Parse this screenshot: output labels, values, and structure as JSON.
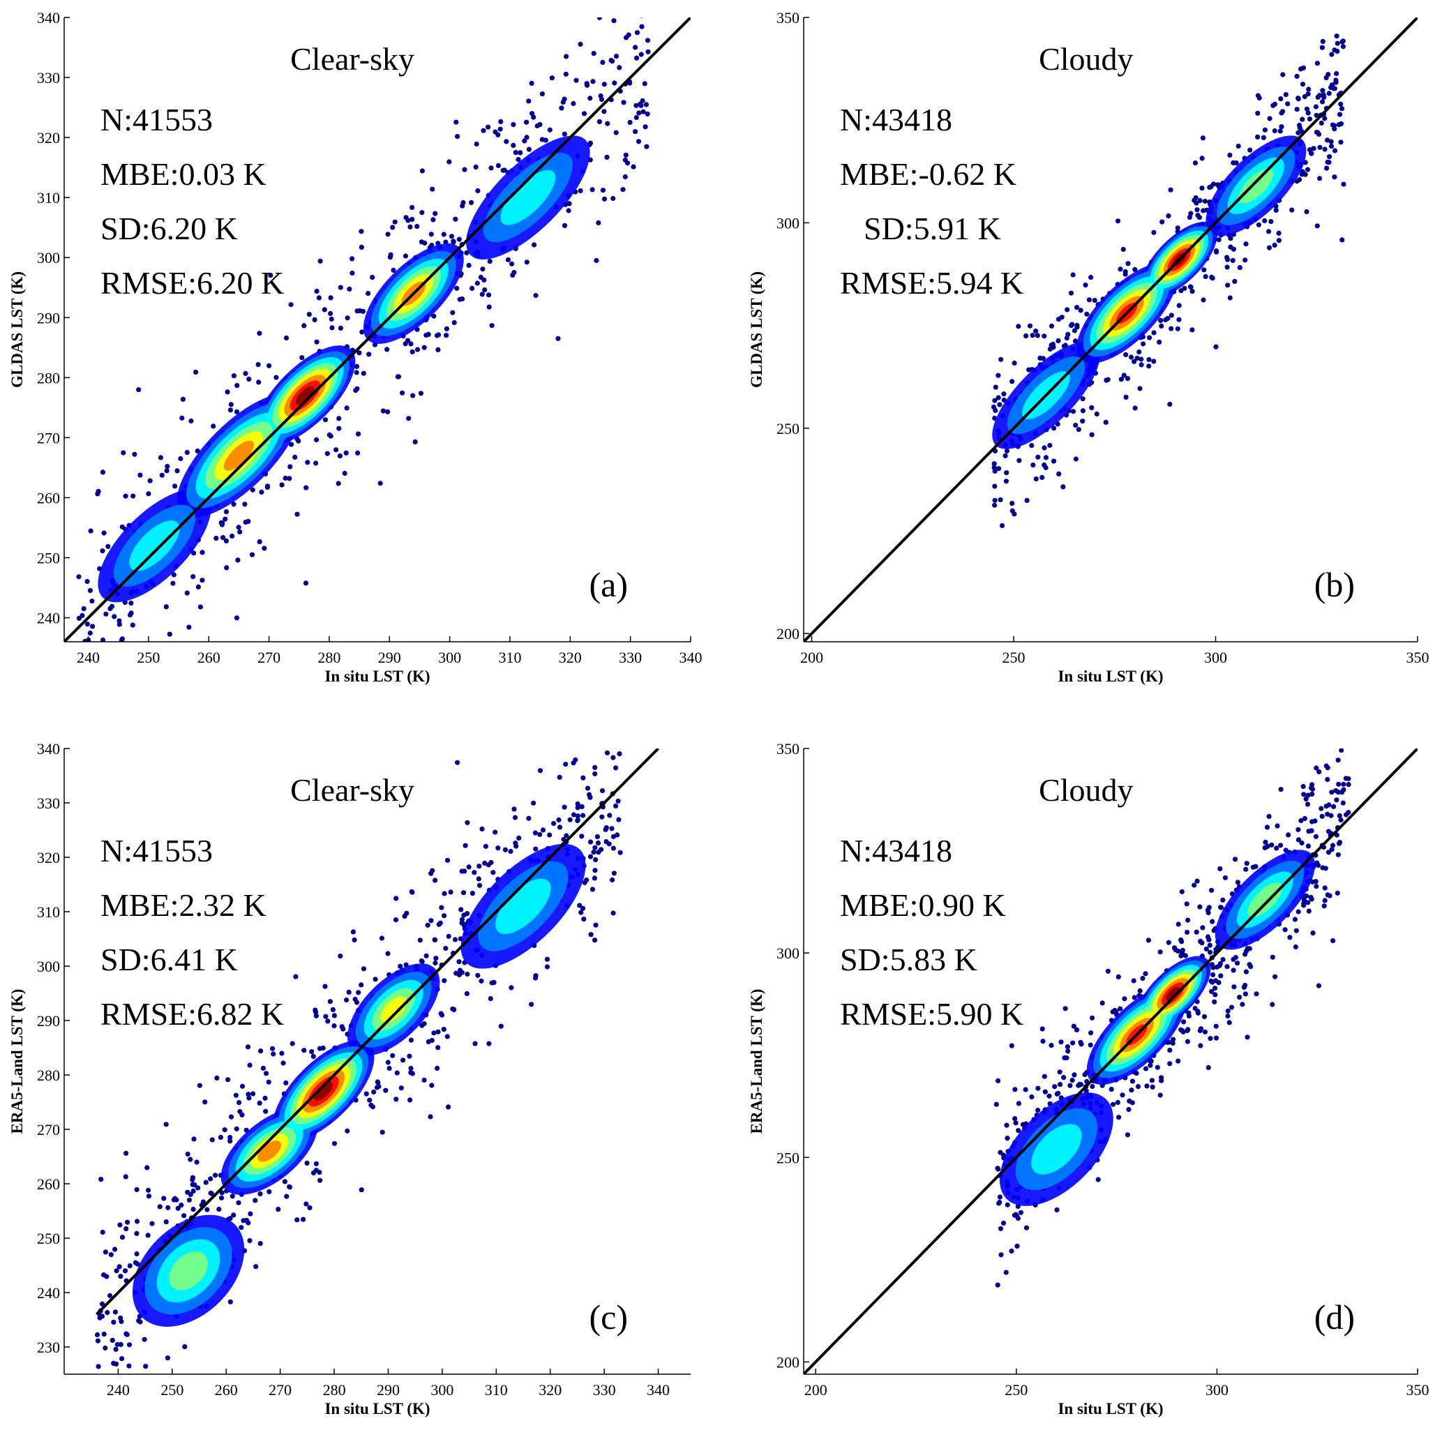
{
  "figure": {
    "colormap": [
      "#00008f",
      "#0000ff",
      "#0080ff",
      "#00ffff",
      "#80ff80",
      "#ffff00",
      "#ff8000",
      "#ff0000",
      "#800000"
    ],
    "fit_line_color": "#000000"
  },
  "chart_data": [
    {
      "id": "a",
      "type": "scatter",
      "panel_label": "(a)",
      "title": "Clear-sky",
      "xlabel": "In situ  LST (K)",
      "ylabel": "GLDAS LST (K)",
      "xlim": [
        236,
        340
      ],
      "ylim": [
        236,
        340
      ],
      "xticks": [
        240,
        250,
        260,
        270,
        280,
        290,
        300,
        310,
        320,
        330,
        340
      ],
      "yticks": [
        240,
        250,
        260,
        270,
        280,
        290,
        300,
        310,
        320,
        330,
        340
      ],
      "stats": [
        {
          "text": "N:41553",
          "indent": 0
        },
        {
          "text": "MBE:0.03 K",
          "indent": 0
        },
        {
          "text": "SD:6.20 K",
          "indent": 0
        },
        {
          "text": "RMSE:6.20 K",
          "indent": 0
        }
      ],
      "line": {
        "x": [
          236,
          340
        ],
        "y": [
          236,
          340
        ]
      },
      "density_clusters": [
        {
          "cx": 251,
          "cy": 252,
          "a": 9,
          "b": 4,
          "angle": 45,
          "weight": 0.35
        },
        {
          "cx": 265,
          "cy": 267,
          "a": 10,
          "b": 4,
          "angle": 45,
          "weight": 0.7
        },
        {
          "cx": 276,
          "cy": 277,
          "a": 8,
          "b": 3.5,
          "angle": 45,
          "weight": 1.0
        },
        {
          "cx": 294,
          "cy": 294,
          "a": 8,
          "b": 3.5,
          "angle": 45,
          "weight": 0.78
        },
        {
          "cx": 313,
          "cy": 310,
          "a": 10,
          "b": 4,
          "angle": 45,
          "weight": 0.4
        }
      ],
      "scatter_band": {
        "x_range": [
          238,
          333
        ],
        "slope": 1.0,
        "intercept": 0,
        "spread": 9,
        "count": 700
      }
    },
    {
      "id": "b",
      "type": "scatter",
      "panel_label": "(b)",
      "title": "Cloudy",
      "xlabel": "In situ  LST (K)",
      "ylabel": "GLDAS LST (K)",
      "xlim": [
        198,
        350
      ],
      "ylim": [
        198,
        350
      ],
      "xticks": [
        200,
        250,
        300,
        350
      ],
      "yticks": [
        200,
        250,
        300,
        350
      ],
      "stats": [
        {
          "text": "N:43418",
          "indent": 0
        },
        {
          "text": "MBE:-0.62 K",
          "indent": 0
        },
        {
          "text": "SD:5.91 K",
          "indent": 1
        },
        {
          "text": "RMSE:5.94 K",
          "indent": 0
        }
      ],
      "line": {
        "x": [
          198,
          350
        ],
        "y": [
          198,
          350
        ]
      },
      "density_clusters": [
        {
          "cx": 258,
          "cy": 258,
          "a": 13,
          "b": 5,
          "angle": 45,
          "weight": 0.4
        },
        {
          "cx": 278,
          "cy": 278,
          "a": 12,
          "b": 5,
          "angle": 45,
          "weight": 0.85
        },
        {
          "cx": 291,
          "cy": 291,
          "a": 9,
          "b": 4,
          "angle": 45,
          "weight": 1.0
        },
        {
          "cx": 310,
          "cy": 309,
          "a": 12,
          "b": 5,
          "angle": 45,
          "weight": 0.45
        }
      ],
      "scatter_band": {
        "x_range": [
          245,
          332
        ],
        "slope": 1.0,
        "intercept": 0,
        "spread": 10,
        "count": 650
      }
    },
    {
      "id": "c",
      "type": "scatter",
      "panel_label": "(c)",
      "title": "Clear-sky",
      "xlabel": "In situ  LST (K)",
      "ylabel": "ERA5-Land LST (K)",
      "xlim": [
        230,
        346
      ],
      "ylim": [
        225,
        340
      ],
      "xticks": [
        240,
        250,
        260,
        270,
        280,
        290,
        300,
        310,
        320,
        330,
        340
      ],
      "yticks": [
        230,
        240,
        250,
        260,
        270,
        280,
        290,
        300,
        310,
        320,
        330,
        340
      ],
      "stats": [
        {
          "text": "N:41553",
          "indent": 0
        },
        {
          "text": "MBE:2.32 K",
          "indent": 0
        },
        {
          "text": "SD:6.41 K",
          "indent": 0
        },
        {
          "text": "RMSE:6.82 K",
          "indent": 0
        }
      ],
      "line": {
        "x": [
          236,
          340
        ],
        "y": [
          236,
          340
        ]
      },
      "density_clusters": [
        {
          "cx": 253,
          "cy": 244,
          "a": 9,
          "b": 6,
          "angle": 45,
          "weight": 0.45
        },
        {
          "cx": 268,
          "cy": 266,
          "a": 8,
          "b": 4,
          "angle": 40,
          "weight": 0.7
        },
        {
          "cx": 278,
          "cy": 277,
          "a": 9,
          "b": 4,
          "angle": 45,
          "weight": 1.0
        },
        {
          "cx": 291,
          "cy": 292,
          "a": 8,
          "b": 4,
          "angle": 45,
          "weight": 0.65
        },
        {
          "cx": 315,
          "cy": 311,
          "a": 11,
          "b": 5,
          "angle": 45,
          "weight": 0.4
        }
      ],
      "scatter_band": {
        "x_range": [
          236,
          333
        ],
        "slope": 1.0,
        "intercept": 0,
        "spread": 10,
        "count": 700
      }
    },
    {
      "id": "d",
      "type": "scatter",
      "panel_label": "(d)",
      "title": "Cloudy",
      "xlabel": "In situ  LST (K)",
      "ylabel": "ERA5-Land LST (K)",
      "xlim": [
        197,
        350
      ],
      "ylim": [
        197,
        350
      ],
      "xticks": [
        200,
        250,
        300,
        350
      ],
      "yticks": [
        200,
        250,
        300,
        350
      ],
      "stats": [
        {
          "text": "N:43418",
          "indent": 0
        },
        {
          "text": "MBE:0.90 K",
          "indent": 0
        },
        {
          "text": "SD:5.83 K",
          "indent": 0
        },
        {
          "text": "RMSE:5.90 K",
          "indent": 0
        }
      ],
      "line": {
        "x": [
          197,
          350
        ],
        "y": [
          197,
          350
        ]
      },
      "density_clusters": [
        {
          "cx": 260,
          "cy": 252,
          "a": 13,
          "b": 7,
          "angle": 45,
          "weight": 0.4
        },
        {
          "cx": 280,
          "cy": 280,
          "a": 12,
          "b": 5,
          "angle": 45,
          "weight": 0.85
        },
        {
          "cx": 289,
          "cy": 290,
          "a": 9,
          "b": 4,
          "angle": 45,
          "weight": 1.0
        },
        {
          "cx": 312,
          "cy": 313,
          "a": 12,
          "b": 5,
          "angle": 45,
          "weight": 0.45
        }
      ],
      "scatter_band": {
        "x_range": [
          245,
          333
        ],
        "slope": 1.0,
        "intercept": 0,
        "spread": 11,
        "count": 650
      }
    }
  ]
}
